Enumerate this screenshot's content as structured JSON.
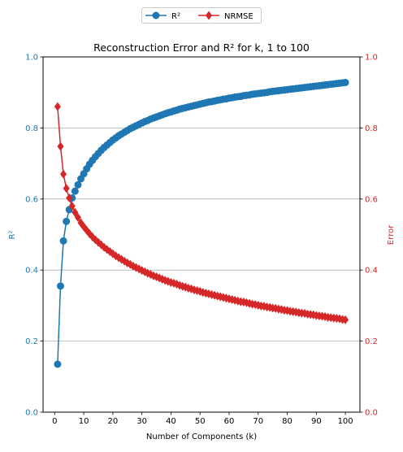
{
  "chart_data": {
    "type": "line",
    "title": "Reconstruction Error and R² for k, 1 to 100",
    "xlabel": "Number of Components (k)",
    "ylabel_left": "R²",
    "ylabel_right": "Error",
    "xlim": [
      -4,
      105
    ],
    "ylim_left": [
      0.0,
      1.0
    ],
    "ylim_right": [
      0.0,
      1.0
    ],
    "x_ticks": [
      0,
      10,
      20,
      30,
      40,
      50,
      60,
      70,
      80,
      90,
      100
    ],
    "y_ticks": [
      0.0,
      0.2,
      0.4,
      0.6,
      0.8,
      1.0
    ],
    "y_ticks_right": [
      0.0,
      0.2,
      0.4,
      0.6,
      0.8,
      1.0
    ],
    "grid": "horizontal",
    "legend_placement": "top-center, above plot",
    "colors": {
      "r2": "#1f77b4",
      "nrmse": "#d62728"
    },
    "series": [
      {
        "name": "R²",
        "axis": "left",
        "marker": "circle",
        "x": [
          1,
          2,
          3,
          4,
          5,
          6,
          7,
          8,
          9,
          10,
          11,
          12,
          13,
          14,
          15,
          16,
          17,
          18,
          19,
          20,
          21,
          22,
          23,
          24,
          25,
          26,
          27,
          28,
          29,
          30,
          31,
          32,
          33,
          34,
          35,
          36,
          37,
          38,
          39,
          40,
          41,
          42,
          43,
          44,
          45,
          46,
          47,
          48,
          49,
          50,
          51,
          52,
          53,
          54,
          55,
          56,
          57,
          58,
          59,
          60,
          61,
          62,
          63,
          64,
          65,
          66,
          67,
          68,
          69,
          70,
          71,
          72,
          73,
          74,
          75,
          76,
          77,
          78,
          79,
          80,
          81,
          82,
          83,
          84,
          85,
          86,
          87,
          88,
          89,
          90,
          91,
          92,
          93,
          94,
          95,
          96,
          97,
          98,
          99,
          100
        ],
        "values": [
          0.135,
          0.355,
          0.482,
          0.537,
          0.57,
          0.603,
          0.622,
          0.64,
          0.657,
          0.671,
          0.685,
          0.698,
          0.709,
          0.719,
          0.728,
          0.737,
          0.745,
          0.752,
          0.759,
          0.766,
          0.772,
          0.778,
          0.783,
          0.788,
          0.793,
          0.798,
          0.802,
          0.806,
          0.81,
          0.814,
          0.818,
          0.821,
          0.825,
          0.828,
          0.831,
          0.834,
          0.837,
          0.84,
          0.843,
          0.845,
          0.848,
          0.85,
          0.853,
          0.855,
          0.857,
          0.859,
          0.861,
          0.863,
          0.865,
          0.867,
          0.869,
          0.871,
          0.873,
          0.874,
          0.876,
          0.878,
          0.879,
          0.881,
          0.882,
          0.884,
          0.885,
          0.887,
          0.888,
          0.889,
          0.891,
          0.892,
          0.893,
          0.895,
          0.896,
          0.897,
          0.898,
          0.899,
          0.9,
          0.902,
          0.903,
          0.904,
          0.905,
          0.906,
          0.907,
          0.908,
          0.909,
          0.91,
          0.911,
          0.912,
          0.913,
          0.914,
          0.915,
          0.916,
          0.917,
          0.918,
          0.919,
          0.92,
          0.921,
          0.922,
          0.923,
          0.924,
          0.925,
          0.926,
          0.927,
          0.928
        ]
      },
      {
        "name": "NRMSE",
        "axis": "right",
        "marker": "diamond",
        "x": [
          1,
          2,
          3,
          4,
          5,
          6,
          7,
          8,
          9,
          10,
          11,
          12,
          13,
          14,
          15,
          16,
          17,
          18,
          19,
          20,
          21,
          22,
          23,
          24,
          25,
          26,
          27,
          28,
          29,
          30,
          31,
          32,
          33,
          34,
          35,
          36,
          37,
          38,
          39,
          40,
          41,
          42,
          43,
          44,
          45,
          46,
          47,
          48,
          49,
          50,
          51,
          52,
          53,
          54,
          55,
          56,
          57,
          58,
          59,
          60,
          61,
          62,
          63,
          64,
          65,
          66,
          67,
          68,
          69,
          70,
          71,
          72,
          73,
          74,
          75,
          76,
          77,
          78,
          79,
          80,
          81,
          82,
          83,
          84,
          85,
          86,
          87,
          88,
          89,
          90,
          91,
          92,
          93,
          94,
          95,
          96,
          97,
          98,
          99,
          100
        ],
        "values": [
          0.86,
          0.748,
          0.67,
          0.63,
          0.603,
          0.58,
          0.562,
          0.548,
          0.533,
          0.522,
          0.512,
          0.502,
          0.493,
          0.485,
          0.478,
          0.471,
          0.464,
          0.458,
          0.452,
          0.446,
          0.44,
          0.435,
          0.43,
          0.425,
          0.42,
          0.416,
          0.411,
          0.407,
          0.403,
          0.399,
          0.395,
          0.391,
          0.388,
          0.384,
          0.381,
          0.378,
          0.374,
          0.371,
          0.368,
          0.365,
          0.363,
          0.36,
          0.357,
          0.354,
          0.352,
          0.349,
          0.347,
          0.344,
          0.342,
          0.34,
          0.337,
          0.335,
          0.333,
          0.331,
          0.329,
          0.327,
          0.325,
          0.323,
          0.321,
          0.319,
          0.317,
          0.315,
          0.313,
          0.311,
          0.31,
          0.308,
          0.306,
          0.304,
          0.303,
          0.301,
          0.299,
          0.298,
          0.296,
          0.295,
          0.293,
          0.292,
          0.29,
          0.289,
          0.287,
          0.286,
          0.284,
          0.283,
          0.282,
          0.28,
          0.279,
          0.278,
          0.276,
          0.275,
          0.274,
          0.272,
          0.271,
          0.27,
          0.269,
          0.267,
          0.266,
          0.265,
          0.264,
          0.263,
          0.261,
          0.26
        ]
      }
    ]
  }
}
